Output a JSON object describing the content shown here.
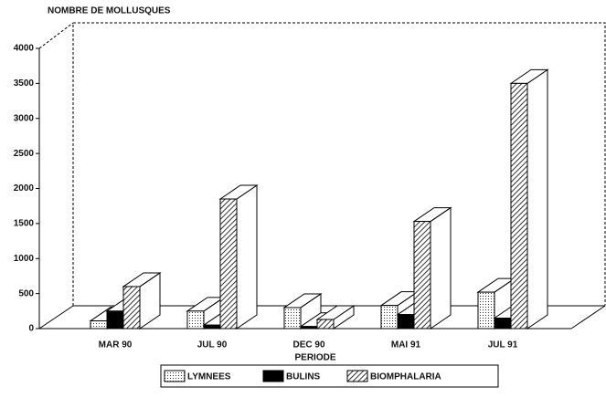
{
  "chart_data": {
    "type": "bar3d",
    "y_label": "NOMBRE DE MOLLUSQUES",
    "x_label": "PERIODE",
    "categories": [
      "MAR 90",
      "JUL 90",
      "DEC 90",
      "MAI 91",
      "JUL 91"
    ],
    "series": [
      {
        "name": "LYMNEES",
        "fill": "dots",
        "values": [
          110,
          250,
          300,
          330,
          520
        ]
      },
      {
        "name": "BULINS",
        "fill": "solid",
        "values": [
          250,
          50,
          30,
          200,
          150
        ]
      },
      {
        "name": "BIOMPHALARIA",
        "fill": "hatch",
        "values": [
          600,
          1850,
          130,
          1530,
          3500
        ]
      }
    ],
    "ylim": [
      0,
      4000
    ],
    "yticks": [
      0,
      500,
      1000,
      1500,
      2000,
      2500,
      3000,
      3500,
      4000
    ]
  }
}
